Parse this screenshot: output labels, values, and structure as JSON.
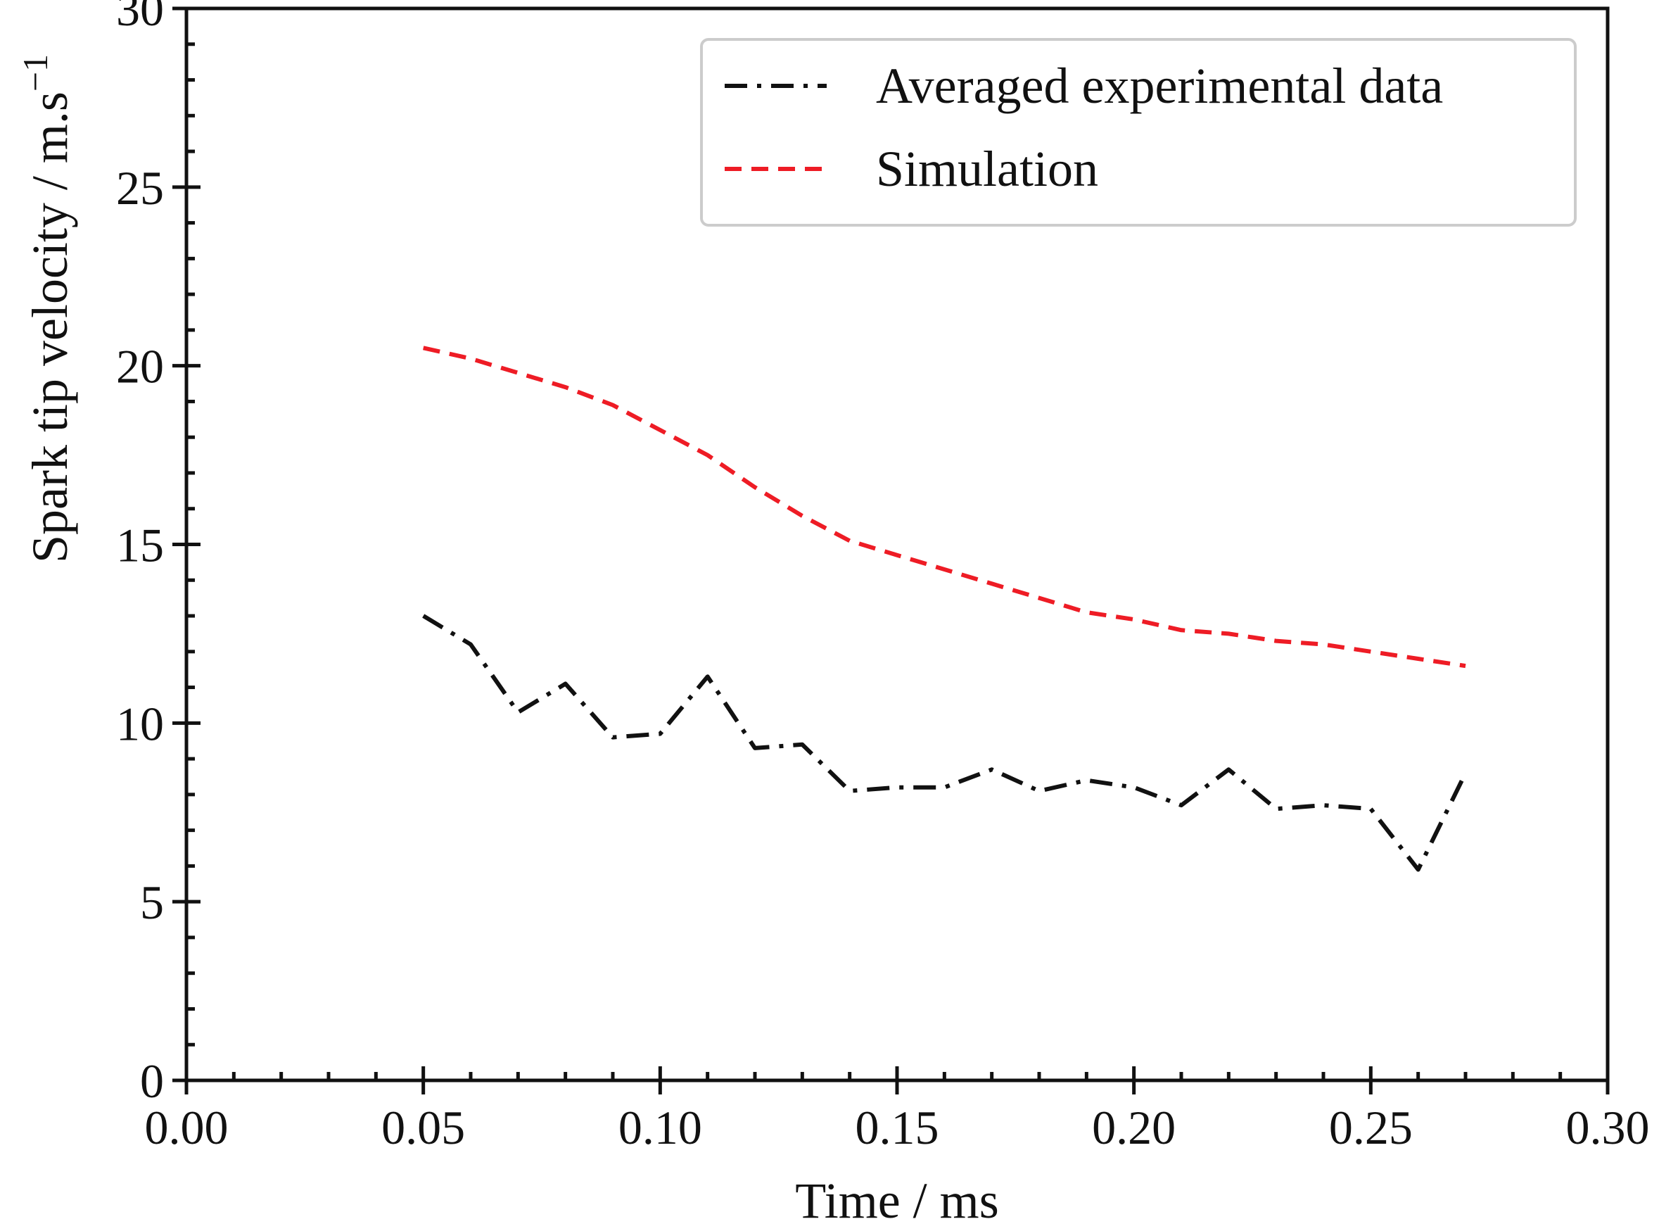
{
  "chart_data": {
    "type": "line",
    "title": "",
    "xlabel": "Time / ms",
    "ylabel": "Spark tip velocity / m.s",
    "ylabel_superscript": "−1",
    "xlim": [
      0.0,
      0.3
    ],
    "ylim": [
      0,
      30
    ],
    "x_ticks": [
      0.0,
      0.05,
      0.1,
      0.15,
      0.2,
      0.25,
      0.3
    ],
    "x_tick_labels": [
      "0.00",
      "0.05",
      "0.10",
      "0.15",
      "0.20",
      "0.25",
      "0.30"
    ],
    "y_ticks": [
      0,
      5,
      10,
      15,
      20,
      25,
      30
    ],
    "y_tick_labels": [
      "0",
      "5",
      "10",
      "15",
      "20",
      "25",
      "30"
    ],
    "grid": false,
    "legend_position": "top-right",
    "series": [
      {
        "name": "Averaged experimental data",
        "color": "#111111",
        "line_style": "dash-dot",
        "x": [
          0.05,
          0.06,
          0.07,
          0.08,
          0.09,
          0.1,
          0.11,
          0.12,
          0.13,
          0.14,
          0.15,
          0.16,
          0.17,
          0.18,
          0.19,
          0.2,
          0.21,
          0.22,
          0.23,
          0.24,
          0.25,
          0.26,
          0.27
        ],
        "values": [
          13.0,
          12.2,
          10.3,
          11.1,
          9.6,
          9.7,
          11.3,
          9.3,
          9.4,
          8.1,
          8.2,
          8.2,
          8.7,
          8.1,
          8.4,
          8.2,
          7.7,
          8.7,
          7.6,
          7.7,
          7.6,
          5.9,
          8.6
        ]
      },
      {
        "name": "Simulation",
        "color": "#ee1c25",
        "line_style": "dashed",
        "x": [
          0.05,
          0.06,
          0.07,
          0.08,
          0.09,
          0.1,
          0.11,
          0.12,
          0.13,
          0.14,
          0.15,
          0.16,
          0.17,
          0.18,
          0.19,
          0.2,
          0.21,
          0.22,
          0.23,
          0.24,
          0.25,
          0.26,
          0.27
        ],
        "values": [
          20.5,
          20.2,
          19.8,
          19.4,
          18.9,
          18.2,
          17.5,
          16.6,
          15.8,
          15.1,
          14.7,
          14.3,
          13.9,
          13.5,
          13.1,
          12.9,
          12.6,
          12.5,
          12.3,
          12.2,
          12.0,
          11.8,
          11.6
        ]
      }
    ]
  }
}
